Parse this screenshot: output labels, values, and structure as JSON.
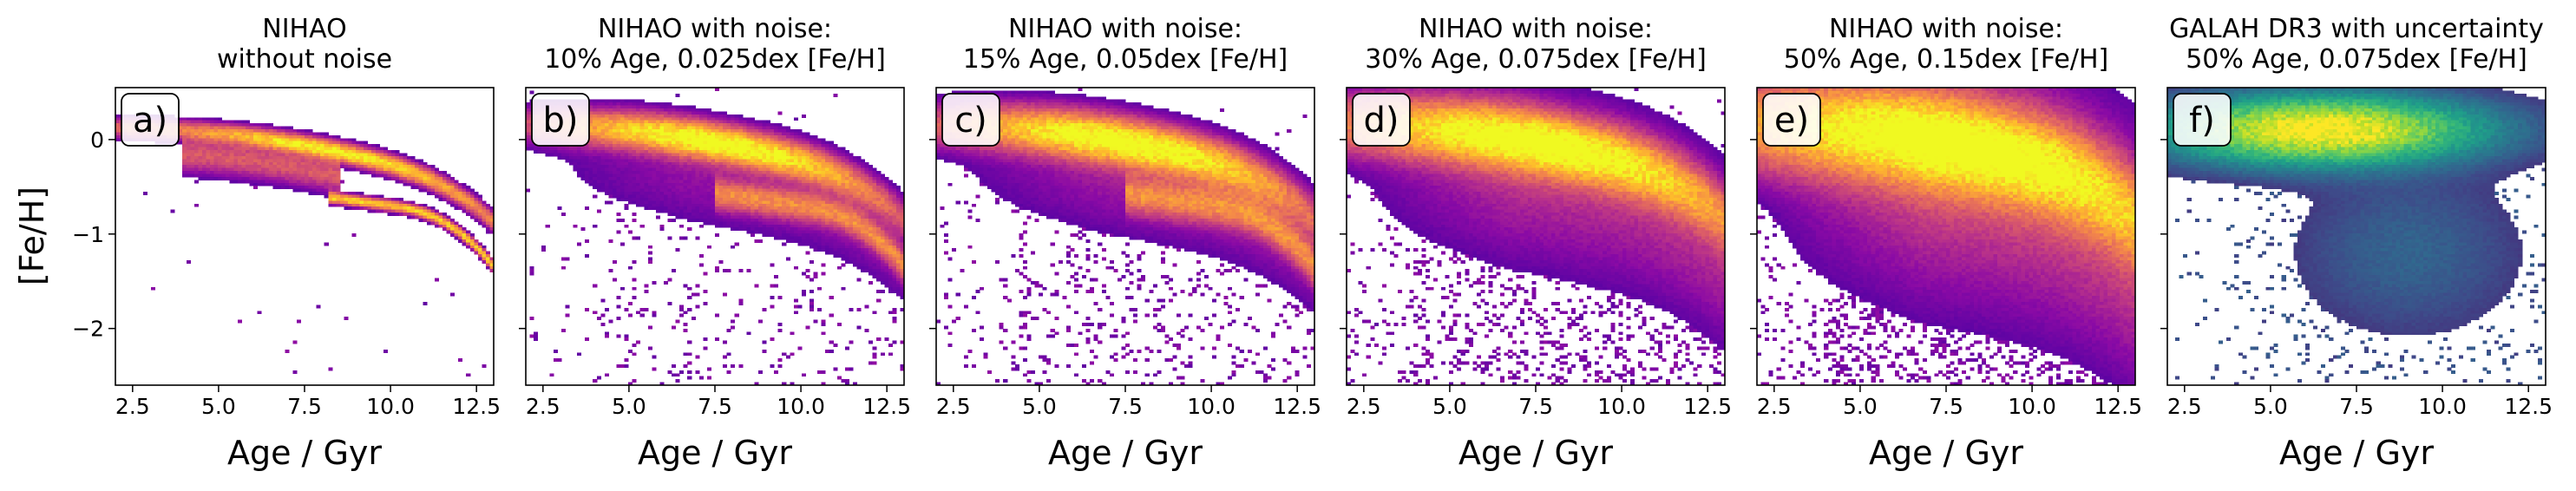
{
  "figure": {
    "ylabel": "[Fe/H]"
  },
  "chart_data": [
    {
      "type": "heatmap",
      "panel_label": "a)",
      "title_lines": [
        "NIHAO",
        "without noise"
      ],
      "xlabel": "Age / Gyr",
      "ylabel": "[Fe/H]",
      "xlim": [
        2.0,
        13.0
      ],
      "ylim": [
        -2.6,
        0.55
      ],
      "xticks": [
        "2.5",
        "5.0",
        "7.5",
        "10.0",
        "12.5"
      ],
      "yticks": [
        "0",
        "−1",
        "−2"
      ],
      "colormap": "plasma",
      "grid": false,
      "model": "nihao_tracks"
    },
    {
      "type": "heatmap",
      "panel_label": "b)",
      "title_lines": [
        "NIHAO with noise:",
        "10% Age, 0.025dex [Fe/H]"
      ],
      "xlabel": "Age / Gyr",
      "xlim": [
        2.0,
        13.0
      ],
      "ylim": [
        -2.6,
        0.55
      ],
      "xticks": [
        "2.5",
        "5.0",
        "7.5",
        "10.0",
        "12.5"
      ],
      "yticks": [
        "0",
        "−1",
        "−2"
      ],
      "colormap": "plasma",
      "age_noise_pct": 10,
      "feh_noise_dex": 0.025,
      "model": "nihao_noise"
    },
    {
      "type": "heatmap",
      "panel_label": "c)",
      "title_lines": [
        "NIHAO with noise:",
        "15% Age, 0.05dex [Fe/H]"
      ],
      "xlabel": "Age / Gyr",
      "xlim": [
        2.0,
        13.0
      ],
      "ylim": [
        -2.6,
        0.55
      ],
      "xticks": [
        "2.5",
        "5.0",
        "7.5",
        "10.0",
        "12.5"
      ],
      "yticks": [
        "0",
        "−1",
        "−2"
      ],
      "colormap": "plasma",
      "age_noise_pct": 15,
      "feh_noise_dex": 0.05,
      "model": "nihao_noise"
    },
    {
      "type": "heatmap",
      "panel_label": "d)",
      "title_lines": [
        "NIHAO with noise:",
        "30% Age, 0.075dex [Fe/H]"
      ],
      "xlabel": "Age / Gyr",
      "xlim": [
        2.0,
        13.0
      ],
      "ylim": [
        -2.6,
        0.55
      ],
      "xticks": [
        "2.5",
        "5.0",
        "7.5",
        "10.0",
        "12.5"
      ],
      "yticks": [
        "0",
        "−1",
        "−2"
      ],
      "colormap": "plasma",
      "age_noise_pct": 30,
      "feh_noise_dex": 0.075,
      "model": "nihao_noise"
    },
    {
      "type": "heatmap",
      "panel_label": "e)",
      "title_lines": [
        "NIHAO with noise:",
        "50% Age, 0.15dex [Fe/H]"
      ],
      "xlabel": "Age / Gyr",
      "xlim": [
        2.0,
        13.0
      ],
      "ylim": [
        -2.6,
        0.55
      ],
      "xticks": [
        "2.5",
        "5.0",
        "7.5",
        "10.0",
        "12.5"
      ],
      "yticks": [
        "0",
        "−1",
        "−2"
      ],
      "colormap": "plasma",
      "age_noise_pct": 50,
      "feh_noise_dex": 0.15,
      "model": "nihao_noise"
    },
    {
      "type": "heatmap",
      "panel_label": "f)",
      "title_lines": [
        "GALAH DR3 with uncertainty",
        "50% Age, 0.075dex [Fe/H]"
      ],
      "xlabel": "Age / Gyr",
      "xlim": [
        2.0,
        13.0
      ],
      "ylim": [
        -2.6,
        0.55
      ],
      "xticks": [
        "2.5",
        "5.0",
        "7.5",
        "10.0",
        "12.5"
      ],
      "yticks": [
        "0",
        "−1",
        "−2"
      ],
      "colormap": "viridis",
      "age_noise_pct": 50,
      "feh_noise_dex": 0.075,
      "model": "galah"
    }
  ]
}
